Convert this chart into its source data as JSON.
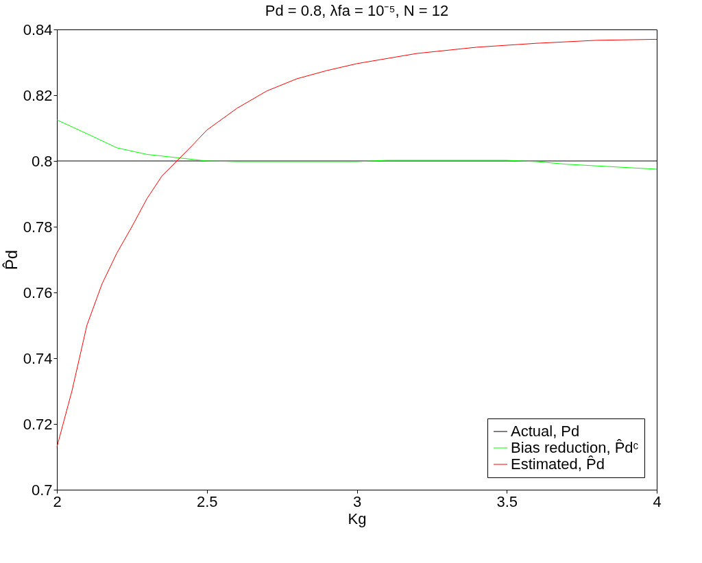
{
  "chart_data": {
    "type": "line",
    "title": "Pd = 0.8, λfa = 10⁻⁵, N = 12",
    "xlabel": "Kg",
    "ylabel": "P̂d",
    "xlim": [
      2,
      4
    ],
    "xticks": [
      2,
      2.5,
      3,
      3.5,
      4
    ],
    "ylim": [
      0.7,
      0.84
    ],
    "yticks": [
      0.7,
      0.72,
      0.74,
      0.76,
      0.78,
      0.8,
      0.82,
      0.84
    ],
    "grid": false,
    "legend": "bottom right",
    "marker": "none",
    "line_style": "solid",
    "series": [
      {
        "name": "Actual, Pd",
        "color": "#000000",
        "x": [
          2,
          4
        ],
        "values": [
          0.8,
          0.8
        ]
      },
      {
        "name": "Bias reduction, P̂dᶜ",
        "color": "#00ff00",
        "x": [
          2,
          2.1,
          2.2,
          2.3,
          2.4,
          2.5,
          2.6,
          3.0,
          3.1,
          3.5,
          3.6,
          3.7,
          3.8,
          4.0
        ],
        "values": [
          0.8125,
          0.8083,
          0.804,
          0.802,
          0.801,
          0.8,
          0.7998,
          0.7998,
          0.8002,
          0.8002,
          0.7998,
          0.799,
          0.7985,
          0.7975
        ]
      },
      {
        "name": "Estimated, P̂d",
        "color": "#ff0000",
        "x": [
          2,
          2.05,
          2.1,
          2.15,
          2.2,
          2.25,
          2.3,
          2.35,
          2.4,
          2.45,
          2.5,
          2.6,
          2.7,
          2.8,
          2.9,
          3.0,
          3.2,
          3.4,
          3.6,
          3.8,
          4.0
        ],
        "values": [
          0.713,
          0.73,
          0.75,
          0.7625,
          0.772,
          0.78,
          0.7885,
          0.7954,
          0.8,
          0.8046,
          0.8094,
          0.816,
          0.8213,
          0.825,
          0.8275,
          0.8296,
          0.8327,
          0.8346,
          0.8358,
          0.8367,
          0.837
        ]
      }
    ]
  }
}
